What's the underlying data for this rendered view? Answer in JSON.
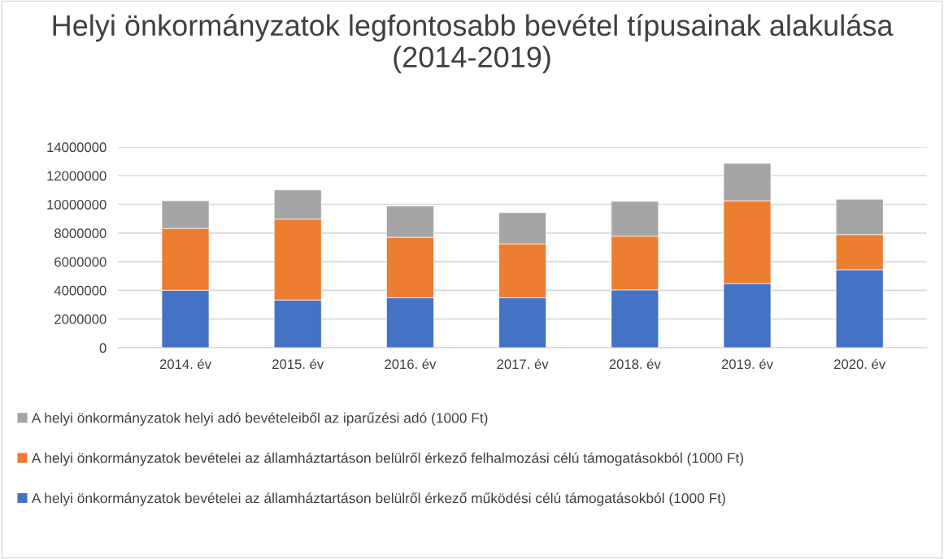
{
  "chart_data": {
    "type": "bar",
    "title": "Helyi önkormányzatok legfontosabb bevétel típusainak alakulása (2014-2019)",
    "categories": [
      "2014. év",
      "2015. év",
      "2016. év",
      "2017. év",
      "2018. év",
      "2019. év",
      "2020. év"
    ],
    "stacked": true,
    "series": [
      {
        "name": "A helyi önkormányzatok bevételei az államháztartáson belülről érkező működési célú támogatásokból (1000 Ft)",
        "color": "#4472c4",
        "values": [
          4010000,
          3330000,
          3480000,
          3480000,
          4030000,
          4480000,
          5440000
        ]
      },
      {
        "name": "A helyi önkormányzatok bevételei az államháztartáson belülről érkező felhalmozási célú támogatásokból (1000 Ft)",
        "color": "#ed7d31",
        "values": [
          4310000,
          5640000,
          4220000,
          3770000,
          3750000,
          5770000,
          2450000
        ]
      },
      {
        "name": "A helyi önkormányzatok helyi adó bevételeiből az iparűzési adó (1000 Ft)",
        "color": "#a5a5a5",
        "values": [
          1930000,
          2040000,
          2190000,
          2170000,
          2430000,
          2610000,
          2470000
        ]
      }
    ],
    "ylim": [
      0,
      14000000
    ],
    "yticks": [
      0,
      2000000,
      4000000,
      6000000,
      8000000,
      10000000,
      12000000,
      14000000
    ],
    "grid": "y",
    "legend": "bottom"
  }
}
